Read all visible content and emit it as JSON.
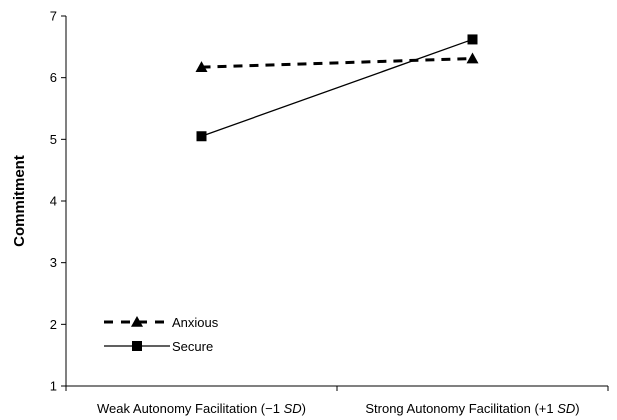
{
  "chart_data": {
    "type": "line",
    "title": "",
    "xlabel": "",
    "ylabel": "Commitment",
    "ylim": [
      1,
      7
    ],
    "yticks": [
      "1",
      "2",
      "3",
      "4",
      "5",
      "6",
      "7"
    ],
    "categories": [
      "Weak Autonomy Facilitation (−1 SD)",
      "Strong  Autonomy Facilitation (+1 SD)"
    ],
    "category_parts": [
      [
        {
          "text": "Weak Autonomy Facilitation (−1 ",
          "italic": false
        },
        {
          "text": "SD",
          "italic": true
        },
        {
          "text": ")",
          "italic": false
        }
      ],
      [
        {
          "text": "Strong  Autonomy Facilitation (+1 ",
          "italic": false
        },
        {
          "text": "SD",
          "italic": true
        },
        {
          "text": ")",
          "italic": false
        }
      ]
    ],
    "grid": false,
    "legend_position": "bottom-left",
    "series": [
      {
        "name": "Anxious",
        "values": [
          6.17,
          6.31
        ],
        "marker": "triangle",
        "line_style": "dashed",
        "color": "#000000"
      },
      {
        "name": "Secure",
        "values": [
          5.05,
          6.62
        ],
        "marker": "square",
        "line_style": "solid",
        "color": "#000000"
      }
    ]
  }
}
